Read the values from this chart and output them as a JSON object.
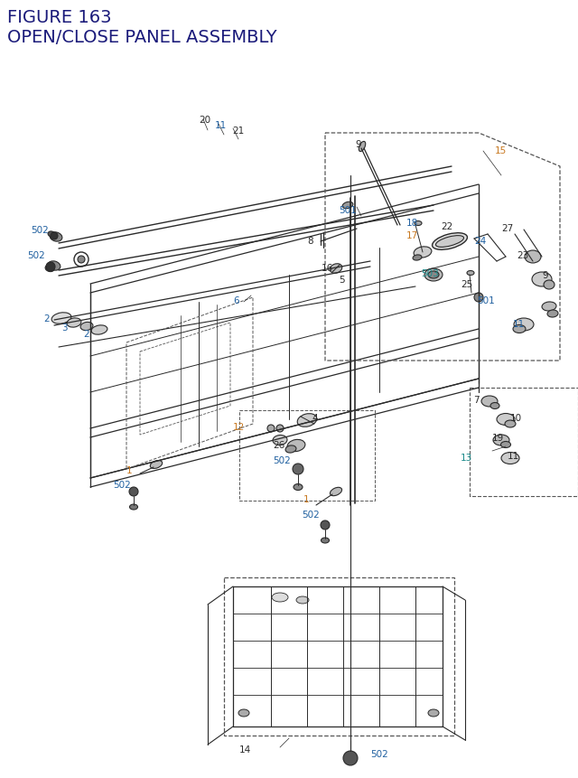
{
  "title_line1": "FIGURE 163",
  "title_line2": "OPEN/CLOSE PANEL ASSEMBLY",
  "title_color": "#1a1a7a",
  "title_fontsize": 14,
  "bg": "#ffffff",
  "lc": "#2a2a2a",
  "dc": "#555555",
  "label_colors": {
    "blue": "#2060a0",
    "orange": "#c87820",
    "teal": "#1a8a8a",
    "dark": "#2a2a2a"
  }
}
